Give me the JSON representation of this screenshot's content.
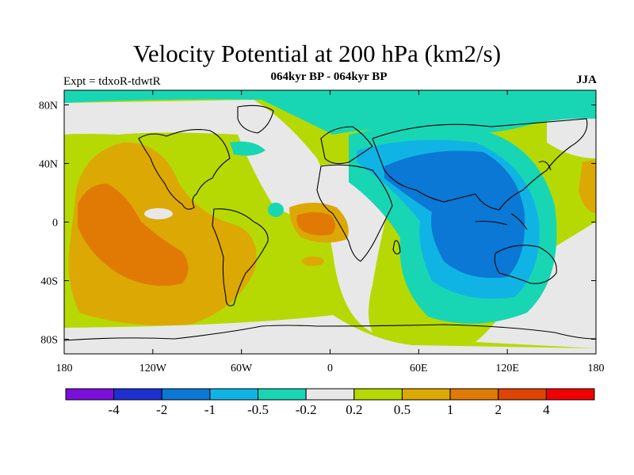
{
  "figure": {
    "title": "Velocity Potential at 200 hPa (km2/s)",
    "subtitle": "064kyr BP - 064kyr BP",
    "left_label": "Expt = tdxoR-tdwtR",
    "right_label": "JJA"
  },
  "chart_data": {
    "type": "heatmap",
    "projection": "cylindrical-equidistant",
    "lon_range": [
      -180,
      180
    ],
    "lat_range": [
      -90,
      90
    ],
    "x_ticks": [
      {
        "lon": -180,
        "label": "180"
      },
      {
        "lon": -120,
        "label": "120W"
      },
      {
        "lon": -60,
        "label": "60W"
      },
      {
        "lon": 0,
        "label": "0"
      },
      {
        "lon": 60,
        "label": "60E"
      },
      {
        "lon": 120,
        "label": "120E"
      },
      {
        "lon": 180,
        "label": "180"
      }
    ],
    "y_ticks": [
      {
        "lat": 80,
        "label": "80N"
      },
      {
        "lat": 40,
        "label": "40N"
      },
      {
        "lat": 0,
        "label": "0"
      },
      {
        "lat": -40,
        "label": "40S"
      },
      {
        "lat": -80,
        "label": "80S"
      }
    ],
    "colorbar": {
      "colors": [
        "#7a0fdc",
        "#1e2fd2",
        "#0a78d4",
        "#10b4e4",
        "#18d6b4",
        "#e8e8e8",
        "#b6d904",
        "#dca804",
        "#e07a04",
        "#e04404",
        "#f00000"
      ],
      "labels": [
        "-4",
        "-2",
        "-1",
        "-0.5",
        "-0.2",
        "0.2",
        "0.5",
        "1",
        "2",
        "4"
      ]
    }
  }
}
